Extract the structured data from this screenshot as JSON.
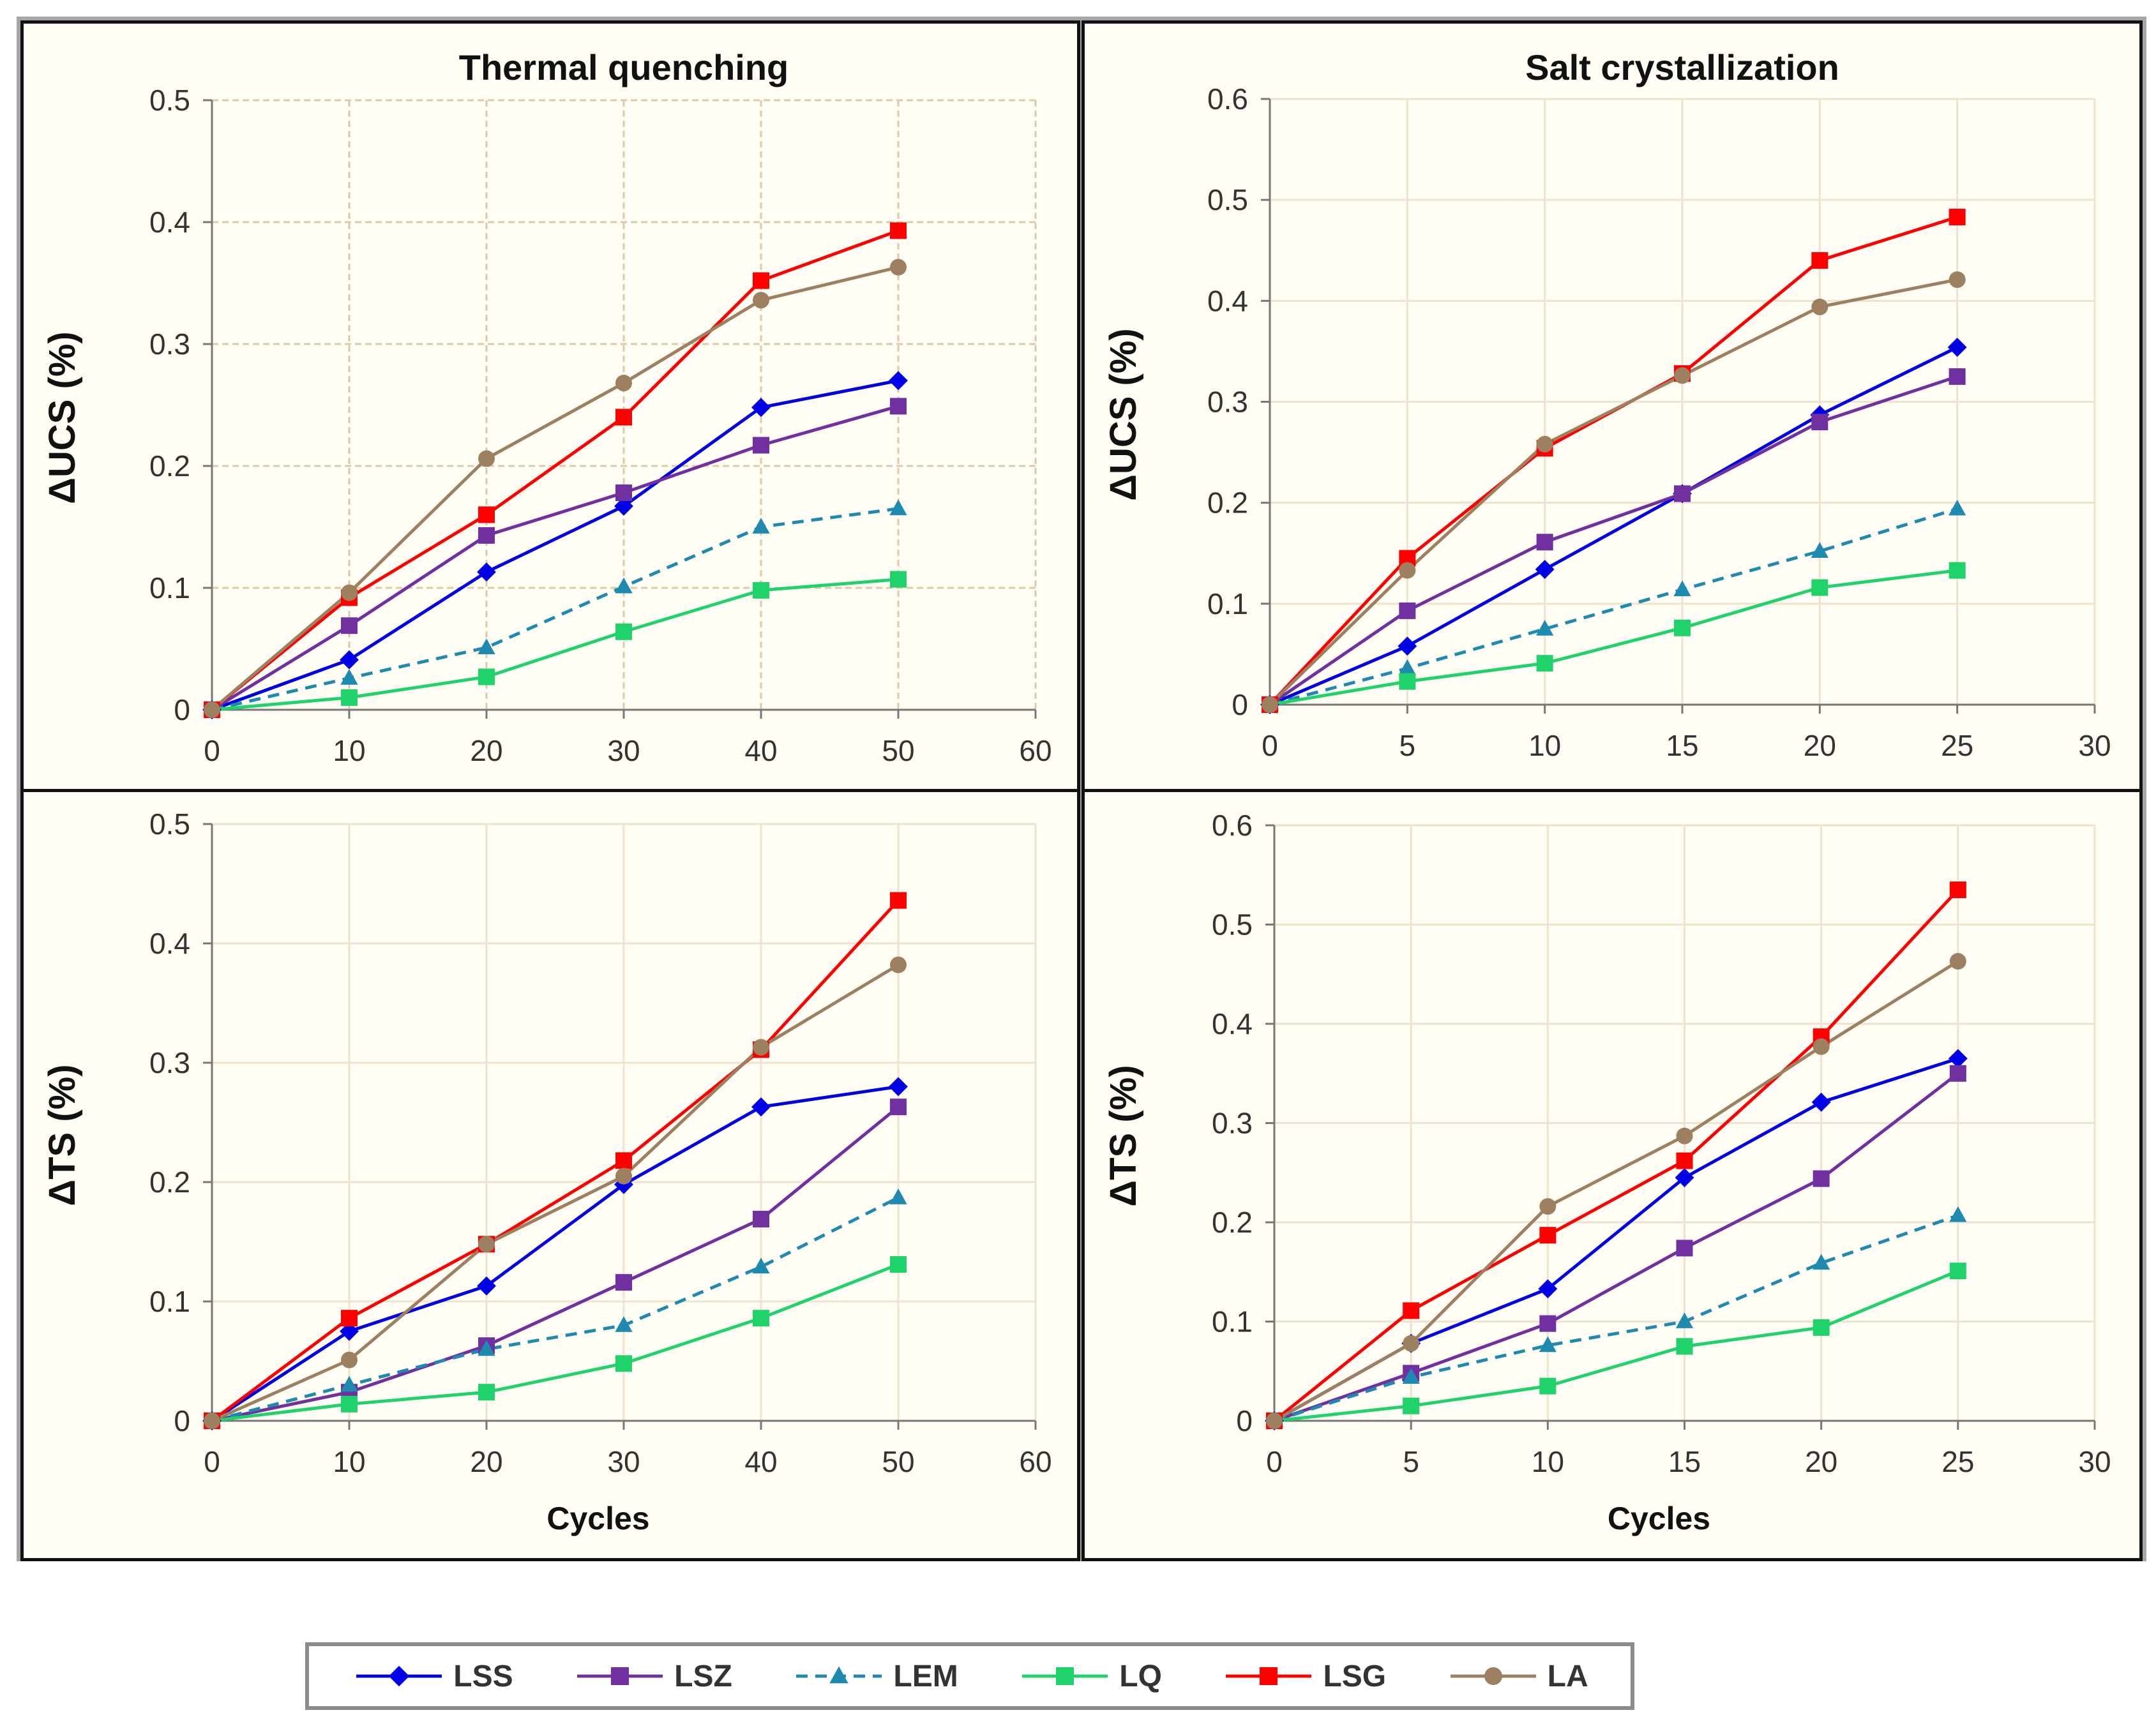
{
  "series_styles": [
    {
      "name": "LSS",
      "color": "#0000e6",
      "marker": "diamond",
      "dashed": false
    },
    {
      "name": "LSZ",
      "color": "#7030a0",
      "marker": "square",
      "dashed": false
    },
    {
      "name": "LEM",
      "color": "#1f8ab0",
      "marker": "triangle",
      "dashed": true
    },
    {
      "name": "LQ",
      "color": "#1fd36a",
      "marker": "square",
      "dashed": false
    },
    {
      "name": "LSG",
      "color": "#ff0000",
      "marker": "square",
      "dashed": false
    },
    {
      "name": "LA",
      "color": "#9c8060",
      "marker": "circle",
      "dashed": false
    }
  ],
  "legend": [
    "LSS",
    "LSZ",
    "LEM",
    "LQ",
    "LSG",
    "LA"
  ],
  "chart_data": [
    {
      "type": "line",
      "title": "Thermal quenching",
      "xlabel": "",
      "ylabel": "ΔUCS (%)",
      "xlim": [
        0,
        60
      ],
      "xticks": [
        "0",
        "10",
        "20",
        "30",
        "40",
        "50",
        "60"
      ],
      "ylim": [
        0,
        0.5
      ],
      "yticks": [
        "0",
        "0.1",
        "0.2",
        "0.3",
        "0.4",
        "0.5"
      ],
      "x": [
        0,
        10,
        20,
        30,
        40,
        50
      ],
      "grid": "dashed",
      "series": [
        {
          "name": "LSS",
          "values": [
            0,
            0.041,
            0.113,
            0.167,
            0.248,
            0.27
          ]
        },
        {
          "name": "LSZ",
          "values": [
            0,
            0.069,
            0.143,
            0.178,
            0.217,
            0.249
          ]
        },
        {
          "name": "LEM",
          "values": [
            0,
            0.026,
            0.051,
            0.101,
            0.15,
            0.165
          ]
        },
        {
          "name": "LQ",
          "values": [
            0,
            0.01,
            0.027,
            0.064,
            0.098,
            0.107
          ]
        },
        {
          "name": "LSG",
          "values": [
            0,
            0.092,
            0.16,
            0.24,
            0.352,
            0.393
          ]
        },
        {
          "name": "LA",
          "values": [
            0,
            0.096,
            0.206,
            0.268,
            0.336,
            0.363
          ]
        }
      ]
    },
    {
      "type": "line",
      "title": "Salt crystallization",
      "xlabel": "",
      "ylabel": "ΔUCS (%)",
      "xlim": [
        0,
        30
      ],
      "xticks": [
        "0",
        "5",
        "10",
        "15",
        "20",
        "25",
        "30"
      ],
      "ylim": [
        0,
        0.6
      ],
      "yticks": [
        "0",
        "0.1",
        "0.2",
        "0.3",
        "0.4",
        "0.5",
        "0.6"
      ],
      "x": [
        0,
        5,
        10,
        15,
        20,
        25
      ],
      "grid": "solid",
      "series": [
        {
          "name": "LSS",
          "values": [
            0,
            0.058,
            0.134,
            0.209,
            0.287,
            0.354
          ]
        },
        {
          "name": "LSZ",
          "values": [
            0,
            0.093,
            0.161,
            0.209,
            0.28,
            0.325
          ]
        },
        {
          "name": "LEM",
          "values": [
            0,
            0.036,
            0.075,
            0.114,
            0.152,
            0.194
          ]
        },
        {
          "name": "LQ",
          "values": [
            0,
            0.023,
            0.041,
            0.076,
            0.116,
            0.133
          ]
        },
        {
          "name": "LSG",
          "values": [
            0,
            0.145,
            0.254,
            0.328,
            0.44,
            0.483
          ]
        },
        {
          "name": "LA",
          "values": [
            0,
            0.133,
            0.258,
            0.326,
            0.394,
            0.421
          ]
        }
      ]
    },
    {
      "type": "line",
      "title": "",
      "xlabel": "Cycles",
      "ylabel": "ΔTS (%)",
      "xlim": [
        0,
        60
      ],
      "xticks": [
        "0",
        "10",
        "20",
        "30",
        "40",
        "50",
        "60"
      ],
      "ylim": [
        0,
        0.5
      ],
      "yticks": [
        "0",
        "0.1",
        "0.2",
        "0.3",
        "0.4",
        "0.5"
      ],
      "x": [
        0,
        10,
        20,
        30,
        40,
        50
      ],
      "grid": "solid",
      "series": [
        {
          "name": "LSS",
          "values": [
            0,
            0.075,
            0.113,
            0.198,
            0.263,
            0.28
          ]
        },
        {
          "name": "LSZ",
          "values": [
            0,
            0.024,
            0.063,
            0.116,
            0.169,
            0.263
          ]
        },
        {
          "name": "LEM",
          "values": [
            0,
            0.03,
            0.06,
            0.08,
            0.129,
            0.187
          ]
        },
        {
          "name": "LQ",
          "values": [
            0,
            0.014,
            0.024,
            0.048,
            0.086,
            0.131
          ]
        },
        {
          "name": "LSG",
          "values": [
            0,
            0.086,
            0.148,
            0.218,
            0.311,
            0.436
          ]
        },
        {
          "name": "LA",
          "values": [
            0,
            0.051,
            0.148,
            0.205,
            0.313,
            0.382
          ]
        }
      ]
    },
    {
      "type": "line",
      "title": "",
      "xlabel": "Cycles",
      "ylabel": "ΔTS (%)",
      "xlim": [
        0,
        30
      ],
      "xticks": [
        "0",
        "5",
        "10",
        "15",
        "20",
        "25",
        "30"
      ],
      "ylim": [
        0,
        0.6
      ],
      "yticks": [
        "0",
        "0.1",
        "0.2",
        "0.3",
        "0.4",
        "0.5",
        "0.6"
      ],
      "x": [
        0,
        5,
        10,
        15,
        20,
        25
      ],
      "grid": "solid",
      "series": [
        {
          "name": "LSS",
          "values": [
            0,
            0.078,
            0.133,
            0.245,
            0.321,
            0.365
          ]
        },
        {
          "name": "LSZ",
          "values": [
            0,
            0.048,
            0.098,
            0.174,
            0.244,
            0.35
          ]
        },
        {
          "name": "LEM",
          "values": [
            0,
            0.044,
            0.076,
            0.1,
            0.159,
            0.207
          ]
        },
        {
          "name": "LQ",
          "values": [
            0,
            0.015,
            0.035,
            0.075,
            0.094,
            0.151
          ]
        },
        {
          "name": "LSG",
          "values": [
            0,
            0.111,
            0.187,
            0.262,
            0.387,
            0.535
          ]
        },
        {
          "name": "LA",
          "values": [
            0,
            0.078,
            0.216,
            0.287,
            0.377,
            0.463
          ]
        }
      ]
    }
  ]
}
